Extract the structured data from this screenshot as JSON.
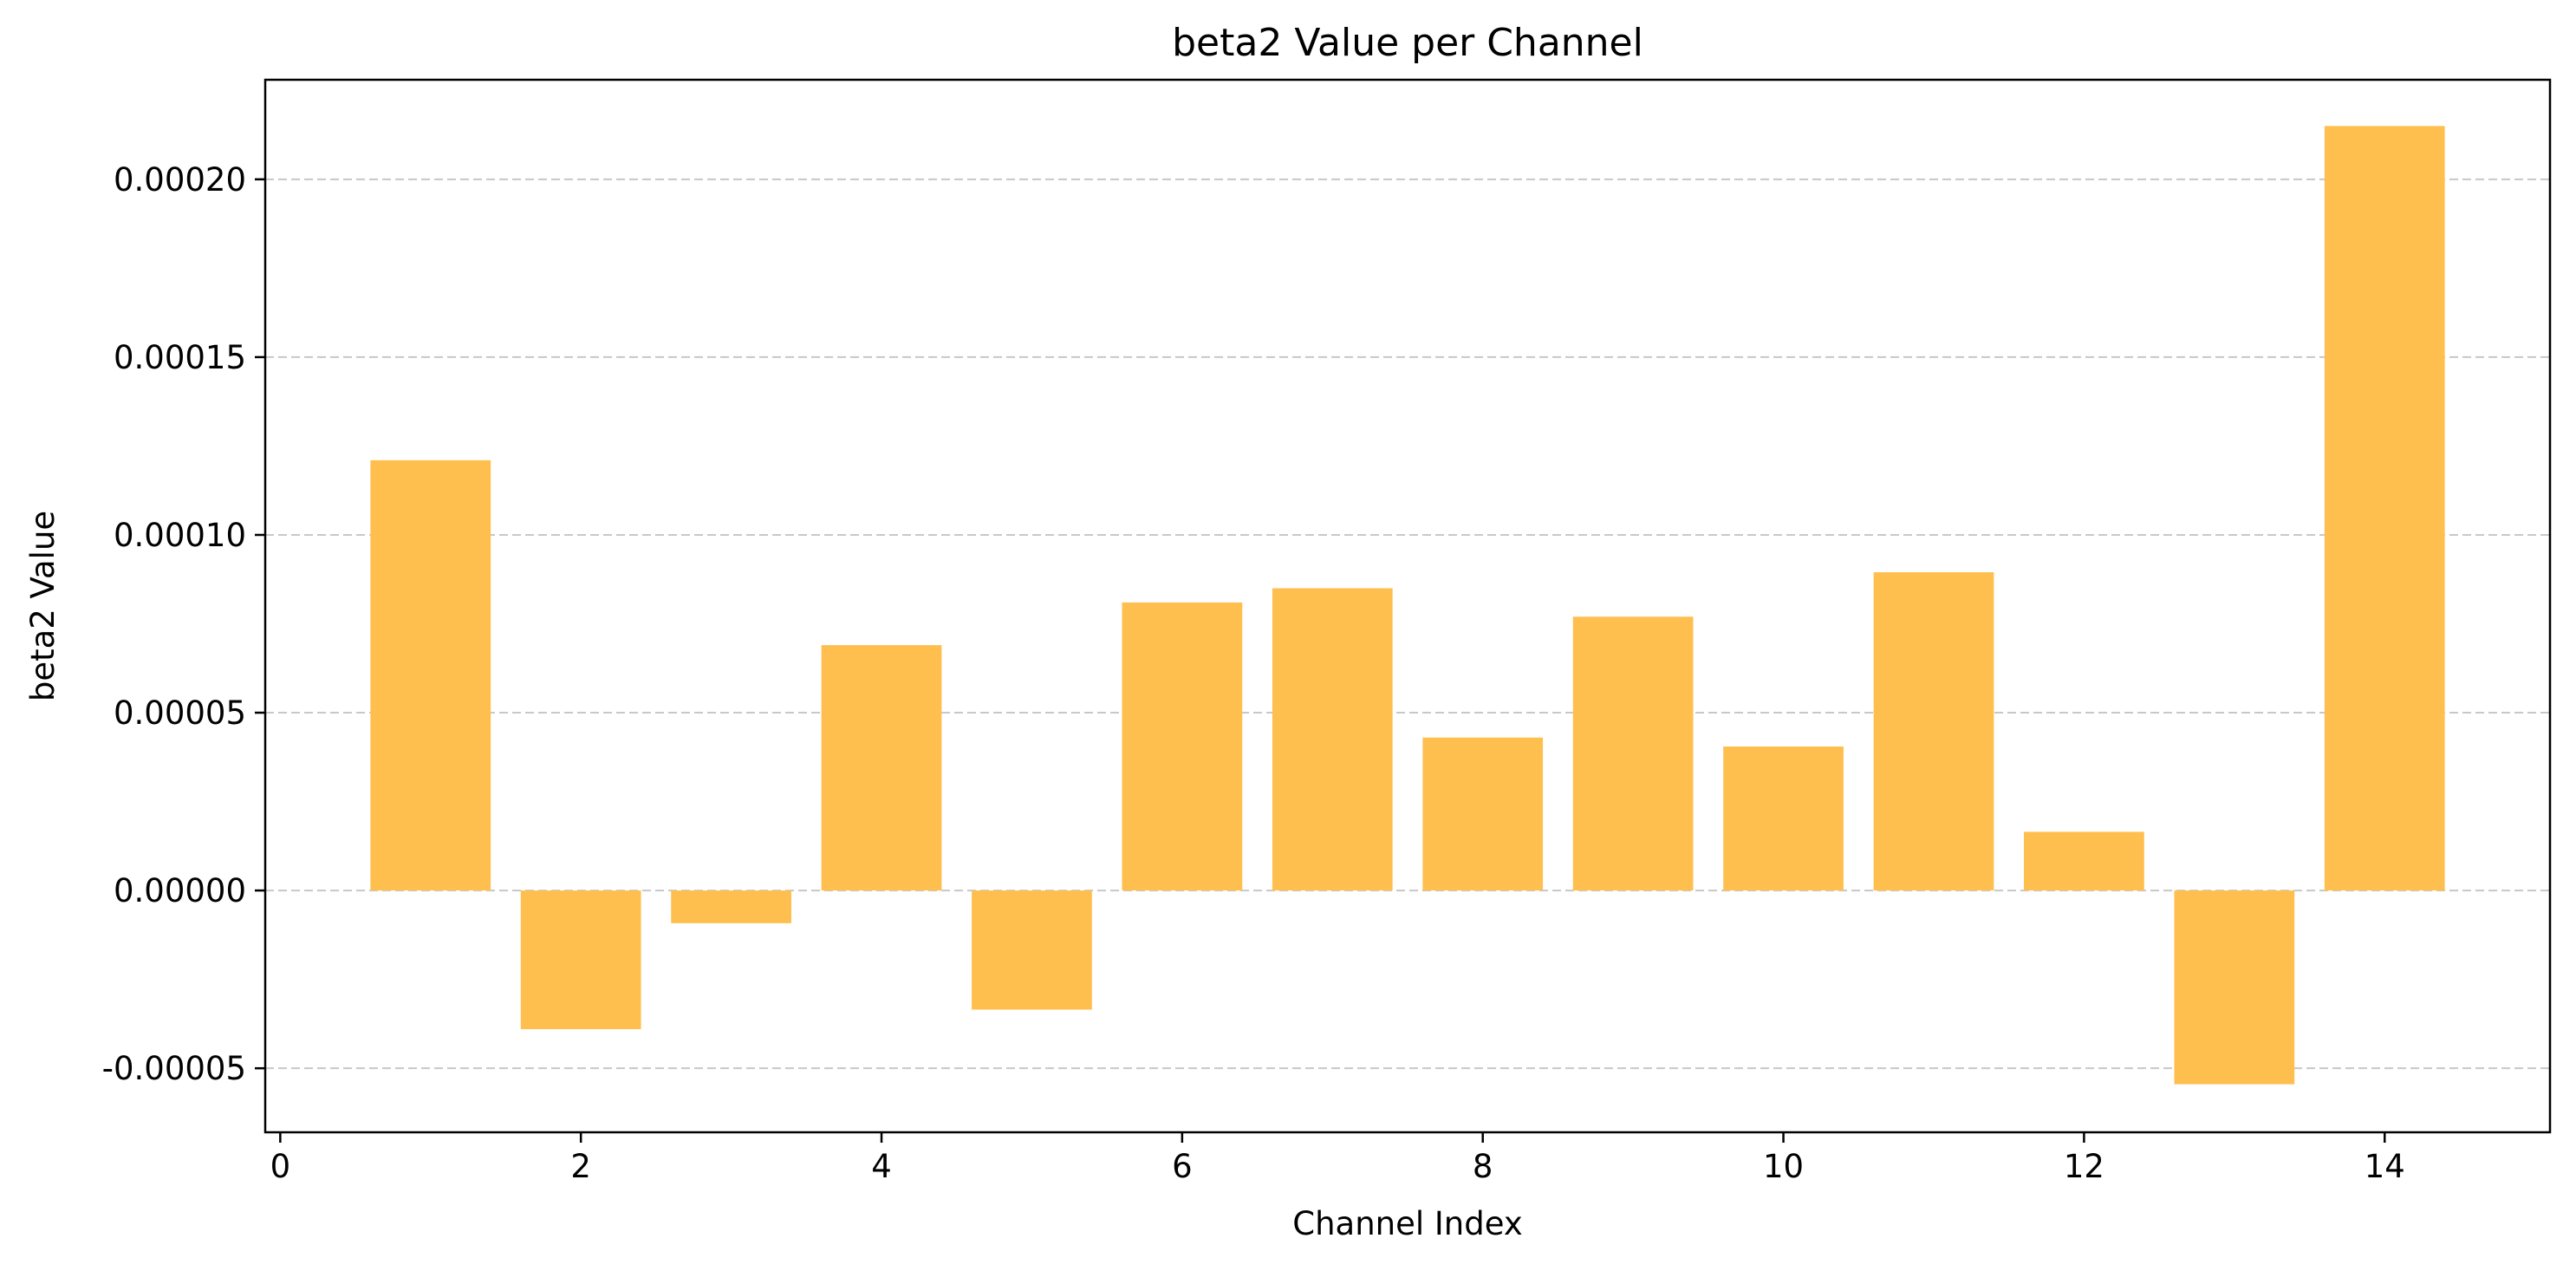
{
  "chart_data": {
    "type": "bar",
    "title": "beta2 Value per Channel",
    "xlabel": "Channel Index",
    "ylabel": "beta2 Value",
    "x": [
      1,
      2,
      3,
      4,
      5,
      6,
      7,
      8,
      9,
      10,
      11,
      12,
      13,
      14
    ],
    "values": [
      0.000121,
      -3.9e-05,
      -9.2e-06,
      6.9e-05,
      -3.35e-05,
      8.1e-05,
      8.5e-05,
      4.3e-05,
      7.7e-05,
      4.05e-05,
      8.95e-05,
      1.65e-05,
      -5.45e-05,
      0.000215
    ],
    "xlim": [
      -0.1,
      15.1
    ],
    "ylim": [
      -6.8e-05,
      0.000228
    ],
    "xticks": [
      0,
      2,
      4,
      6,
      8,
      10,
      12,
      14
    ],
    "xtick_labels": [
      "0",
      "2",
      "4",
      "6",
      "8",
      "10",
      "12",
      "14"
    ],
    "yticks": [
      -5e-05,
      0.0,
      5e-05,
      0.0001,
      0.00015,
      0.0002
    ],
    "ytick_labels": [
      "-0.00005",
      "0.00000",
      "0.00005",
      "0.00010",
      "0.00015",
      "0.00020"
    ],
    "bar_color": "#ffbf4f",
    "grid": "y-dashed",
    "grid_color": "#c8c8c8"
  }
}
